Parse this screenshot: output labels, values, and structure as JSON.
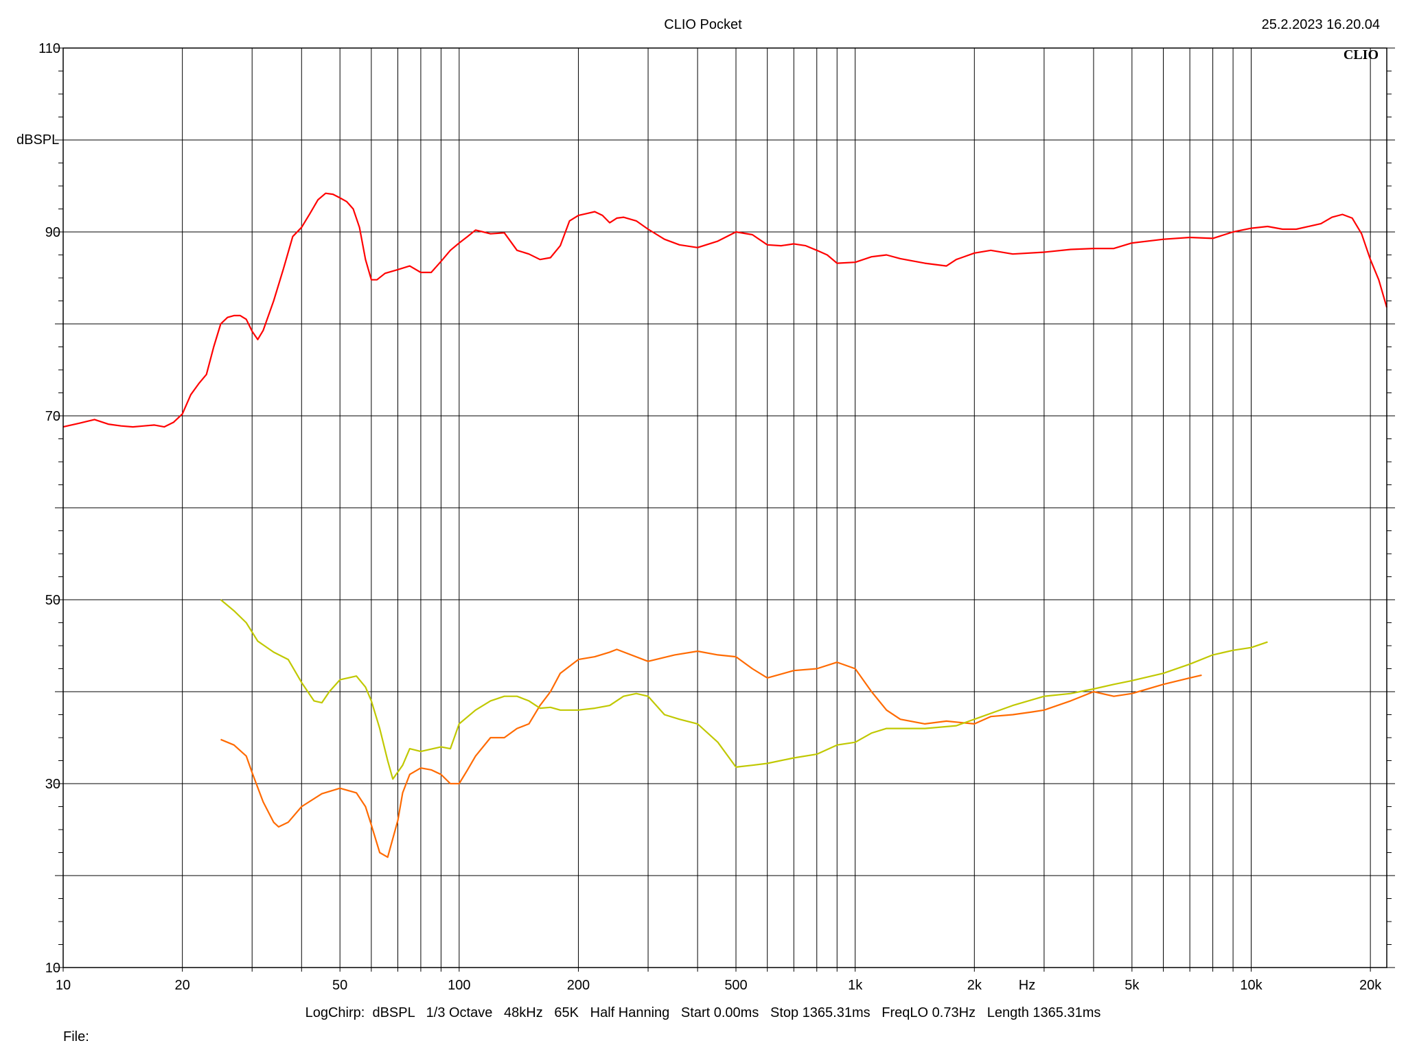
{
  "header": {
    "title": "CLIO Pocket",
    "timestamp": "25.2.2023 16.20.04",
    "brand": "CLIO"
  },
  "footer": {
    "settings": "LogChirp:  dBSPL   1/3 Octave   48kHz   65K   Half Hanning   Start 0.00ms   Stop 1365.31ms   FreqLO 0.73Hz   Length 1365.31ms",
    "file_label": "File:"
  },
  "colors": {
    "grid": "#000000",
    "red": "#ff0000",
    "orange": "#ff6a00",
    "yellow": "#c0c800"
  },
  "chart_data": {
    "type": "line",
    "title": "CLIO Pocket",
    "xlabel": "Hz",
    "ylabel": "dBSPL",
    "xscale": "log",
    "xlim": [
      10,
      22000
    ],
    "ylim": [
      10,
      110
    ],
    "grid": true,
    "x_ticks": [
      {
        "value": 10,
        "label": "10"
      },
      {
        "value": 20,
        "label": "20"
      },
      {
        "value": 50,
        "label": "50"
      },
      {
        "value": 100,
        "label": "100"
      },
      {
        "value": 200,
        "label": "200"
      },
      {
        "value": 500,
        "label": "500"
      },
      {
        "value": 1000,
        "label": "1k"
      },
      {
        "value": 2000,
        "label": "2k"
      },
      {
        "value": 5000,
        "label": "5k"
      },
      {
        "value": 10000,
        "label": "10k"
      },
      {
        "value": 20000,
        "label": "20k"
      }
    ],
    "y_ticks": [
      {
        "value": 110,
        "label": "110"
      },
      {
        "value": 90,
        "label": "90"
      },
      {
        "value": 70,
        "label": "70"
      },
      {
        "value": 50,
        "label": "50"
      },
      {
        "value": 30,
        "label": "30"
      },
      {
        "value": 10,
        "label": "10"
      }
    ],
    "y_gridlines": [
      10,
      20,
      30,
      40,
      50,
      60,
      70,
      80,
      90,
      100,
      110
    ],
    "series": [
      {
        "color": "#ff0000",
        "points": [
          [
            10,
            68.8
          ],
          [
            11,
            69.2
          ],
          [
            12,
            69.6
          ],
          [
            13,
            69.1
          ],
          [
            14,
            68.9
          ],
          [
            15,
            68.8
          ],
          [
            16,
            68.9
          ],
          [
            17,
            69.0
          ],
          [
            18,
            68.8
          ],
          [
            19,
            69.3
          ],
          [
            20,
            70.2
          ],
          [
            21,
            72.3
          ],
          [
            22,
            73.5
          ],
          [
            23,
            74.5
          ],
          [
            24,
            77.5
          ],
          [
            25,
            80.0
          ],
          [
            26,
            80.7
          ],
          [
            27,
            80.9
          ],
          [
            28,
            80.9
          ],
          [
            29,
            80.5
          ],
          [
            30,
            79.2
          ],
          [
            31,
            78.3
          ],
          [
            32,
            79.3
          ],
          [
            34,
            82.5
          ],
          [
            36,
            86.0
          ],
          [
            38,
            89.5
          ],
          [
            40,
            90.5
          ],
          [
            42,
            92.0
          ],
          [
            44,
            93.5
          ],
          [
            46,
            94.2
          ],
          [
            48,
            94.1
          ],
          [
            50,
            93.7
          ],
          [
            52,
            93.3
          ],
          [
            54,
            92.5
          ],
          [
            56,
            90.5
          ],
          [
            58,
            87.0
          ],
          [
            60,
            84.8
          ],
          [
            62,
            84.8
          ],
          [
            65,
            85.5
          ],
          [
            70,
            85.9
          ],
          [
            75,
            86.3
          ],
          [
            80,
            85.6
          ],
          [
            85,
            85.6
          ],
          [
            90,
            86.8
          ],
          [
            95,
            88.0
          ],
          [
            100,
            88.8
          ],
          [
            105,
            89.5
          ],
          [
            110,
            90.2
          ],
          [
            115,
            90.0
          ],
          [
            120,
            89.8
          ],
          [
            130,
            89.9
          ],
          [
            140,
            88.0
          ],
          [
            150,
            87.6
          ],
          [
            160,
            87.0
          ],
          [
            170,
            87.2
          ],
          [
            180,
            88.5
          ],
          [
            190,
            91.2
          ],
          [
            200,
            91.8
          ],
          [
            210,
            92.0
          ],
          [
            220,
            92.2
          ],
          [
            230,
            91.8
          ],
          [
            240,
            91.0
          ],
          [
            250,
            91.5
          ],
          [
            260,
            91.6
          ],
          [
            280,
            91.2
          ],
          [
            300,
            90.3
          ],
          [
            330,
            89.2
          ],
          [
            360,
            88.6
          ],
          [
            400,
            88.3
          ],
          [
            450,
            89.0
          ],
          [
            500,
            90.0
          ],
          [
            550,
            89.7
          ],
          [
            600,
            88.6
          ],
          [
            650,
            88.5
          ],
          [
            700,
            88.7
          ],
          [
            750,
            88.5
          ],
          [
            800,
            88.0
          ],
          [
            850,
            87.5
          ],
          [
            900,
            86.6
          ],
          [
            1000,
            86.7
          ],
          [
            1100,
            87.3
          ],
          [
            1200,
            87.5
          ],
          [
            1300,
            87.1
          ],
          [
            1500,
            86.6
          ],
          [
            1700,
            86.3
          ],
          [
            1800,
            87.0
          ],
          [
            2000,
            87.7
          ],
          [
            2200,
            88.0
          ],
          [
            2500,
            87.6
          ],
          [
            3000,
            87.8
          ],
          [
            3500,
            88.1
          ],
          [
            4000,
            88.2
          ],
          [
            4500,
            88.2
          ],
          [
            5000,
            88.8
          ],
          [
            6000,
            89.2
          ],
          [
            7000,
            89.4
          ],
          [
            8000,
            89.3
          ],
          [
            9000,
            90.0
          ],
          [
            10000,
            90.4
          ],
          [
            11000,
            90.6
          ],
          [
            12000,
            90.3
          ],
          [
            13000,
            90.3
          ],
          [
            15000,
            90.9
          ],
          [
            16000,
            91.6
          ],
          [
            17000,
            91.9
          ],
          [
            18000,
            91.5
          ],
          [
            19000,
            89.8
          ],
          [
            20000,
            87.0
          ],
          [
            21000,
            84.8
          ],
          [
            22000,
            81.8
          ]
        ]
      },
      {
        "color": "#ff6a00",
        "points": [
          [
            25,
            34.8
          ],
          [
            27,
            34.2
          ],
          [
            29,
            33.0
          ],
          [
            30,
            31.2
          ],
          [
            32,
            28.0
          ],
          [
            34,
            25.8
          ],
          [
            35,
            25.3
          ],
          [
            37,
            25.8
          ],
          [
            40,
            27.5
          ],
          [
            45,
            28.9
          ],
          [
            50,
            29.5
          ],
          [
            55,
            29.0
          ],
          [
            58,
            27.5
          ],
          [
            60,
            25.5
          ],
          [
            63,
            22.5
          ],
          [
            66,
            22.0
          ],
          [
            70,
            26.0
          ],
          [
            72,
            29.0
          ],
          [
            75,
            31.0
          ],
          [
            80,
            31.7
          ],
          [
            85,
            31.5
          ],
          [
            90,
            31.0
          ],
          [
            95,
            30.0
          ],
          [
            100,
            30.0
          ],
          [
            105,
            31.5
          ],
          [
            110,
            33.0
          ],
          [
            120,
            35.0
          ],
          [
            130,
            35.0
          ],
          [
            140,
            36.0
          ],
          [
            150,
            36.5
          ],
          [
            160,
            38.5
          ],
          [
            170,
            40.0
          ],
          [
            180,
            42.0
          ],
          [
            200,
            43.5
          ],
          [
            220,
            43.8
          ],
          [
            240,
            44.3
          ],
          [
            250,
            44.6
          ],
          [
            300,
            43.3
          ],
          [
            350,
            44.0
          ],
          [
            400,
            44.4
          ],
          [
            450,
            44.0
          ],
          [
            500,
            43.8
          ],
          [
            550,
            42.5
          ],
          [
            600,
            41.5
          ],
          [
            700,
            42.3
          ],
          [
            800,
            42.5
          ],
          [
            900,
            43.2
          ],
          [
            1000,
            42.5
          ],
          [
            1100,
            40.0
          ],
          [
            1200,
            38.0
          ],
          [
            1300,
            37.0
          ],
          [
            1500,
            36.5
          ],
          [
            1700,
            36.8
          ],
          [
            2000,
            36.5
          ],
          [
            2200,
            37.3
          ],
          [
            2500,
            37.5
          ],
          [
            2800,
            37.8
          ],
          [
            3000,
            38.0
          ],
          [
            3500,
            39.0
          ],
          [
            4000,
            40.0
          ],
          [
            4500,
            39.5
          ],
          [
            5000,
            39.8
          ],
          [
            6000,
            40.8
          ],
          [
            7000,
            41.5
          ],
          [
            7500,
            41.8
          ]
        ]
      },
      {
        "color": "#c0c800",
        "points": [
          [
            25,
            50.0
          ],
          [
            27,
            48.8
          ],
          [
            29,
            47.5
          ],
          [
            31,
            45.5
          ],
          [
            34,
            44.3
          ],
          [
            37,
            43.5
          ],
          [
            40,
            41.0
          ],
          [
            43,
            39.0
          ],
          [
            45,
            38.8
          ],
          [
            47,
            40.0
          ],
          [
            50,
            41.3
          ],
          [
            55,
            41.7
          ],
          [
            58,
            40.5
          ],
          [
            60,
            39.0
          ],
          [
            63,
            36.0
          ],
          [
            66,
            32.5
          ],
          [
            68,
            30.5
          ],
          [
            72,
            32.0
          ],
          [
            75,
            33.8
          ],
          [
            80,
            33.5
          ],
          [
            90,
            34.0
          ],
          [
            95,
            33.8
          ],
          [
            100,
            36.5
          ],
          [
            110,
            38.0
          ],
          [
            120,
            39.0
          ],
          [
            130,
            39.5
          ],
          [
            140,
            39.5
          ],
          [
            150,
            39.0
          ],
          [
            160,
            38.2
          ],
          [
            170,
            38.3
          ],
          [
            180,
            38.0
          ],
          [
            200,
            38.0
          ],
          [
            220,
            38.2
          ],
          [
            240,
            38.5
          ],
          [
            260,
            39.5
          ],
          [
            280,
            39.8
          ],
          [
            300,
            39.5
          ],
          [
            330,
            37.5
          ],
          [
            360,
            37.0
          ],
          [
            400,
            36.5
          ],
          [
            450,
            34.5
          ],
          [
            500,
            31.8
          ],
          [
            550,
            32.0
          ],
          [
            600,
            32.2
          ],
          [
            700,
            32.8
          ],
          [
            800,
            33.2
          ],
          [
            900,
            34.2
          ],
          [
            1000,
            34.5
          ],
          [
            1100,
            35.5
          ],
          [
            1200,
            36.0
          ],
          [
            1500,
            36.0
          ],
          [
            1800,
            36.3
          ],
          [
            2000,
            37.0
          ],
          [
            2500,
            38.5
          ],
          [
            3000,
            39.5
          ],
          [
            3500,
            39.8
          ],
          [
            4000,
            40.3
          ],
          [
            4500,
            40.8
          ],
          [
            5000,
            41.2
          ],
          [
            6000,
            42.0
          ],
          [
            7000,
            43.0
          ],
          [
            8000,
            44.0
          ],
          [
            9000,
            44.5
          ],
          [
            10000,
            44.8
          ],
          [
            11000,
            45.4
          ]
        ]
      }
    ]
  }
}
